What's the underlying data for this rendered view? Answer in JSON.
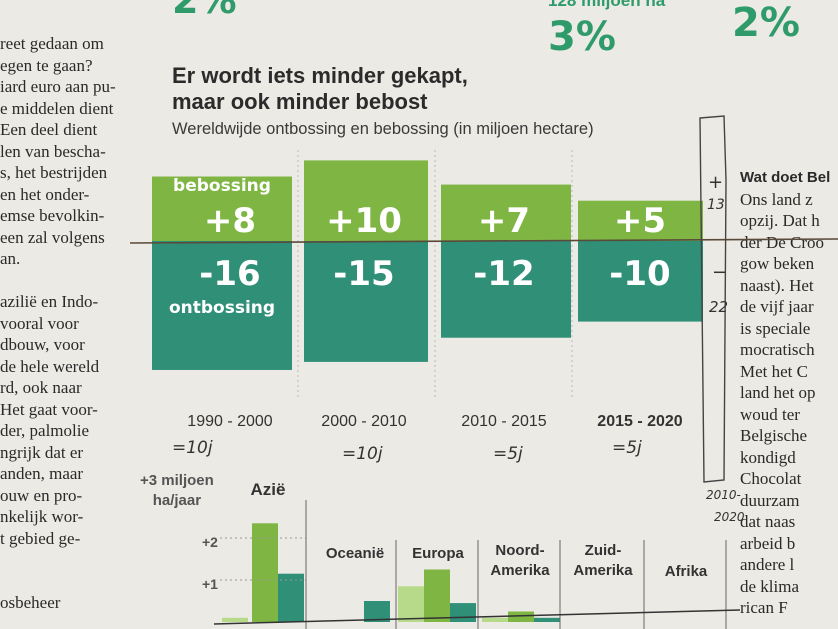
{
  "left_column": {
    "lines": [
      "reet gedaan om",
      "egen te gaan?",
      "iard euro aan pu-",
      "e middelen dient",
      "Een deel dient",
      "len van bescha-",
      "s, het bestrijden",
      "en het onder-",
      "emse bevolkin-",
      "een zal volgens",
      "an.",
      "",
      "aziliё en Indo-",
      "vooral voor",
      "dbouw, voor",
      "de hele wereld",
      "rd, ook naar",
      "Het gaat voor-",
      "der, palmolie",
      "ngrijk dat er",
      "anden, maar",
      "ouw en pro-",
      "nkelijk wor-",
      "t gebied ge-",
      "",
      "",
      "osbeheer"
    ]
  },
  "right_column": {
    "heading": "Wat doet Bel",
    "lines": [
      "Ons land z",
      "opzij. Dat h",
      "der De Croo",
      "gow beken",
      "naast). Het",
      "de vijf jaar",
      "is speciale",
      "mocratisch",
      "Met het C",
      "land het op",
      "woud ter",
      "Belgische",
      "kondigd",
      "Chocolat",
      "duurzam",
      "dat naas",
      "arbeid b",
      "andere l",
      "de klima",
      "rican F"
    ]
  },
  "top_stats": {
    "partial_left": "2%",
    "partial_mid_label": "128 miljoen ha",
    "mid_value": "3%",
    "right_value": "2%"
  },
  "chart_data": {
    "type": "bar",
    "title": "Er wordt iets minder gekapt,\nmaar ook minder bebost",
    "title_lines": [
      "Er wordt iets minder gekapt,",
      "maar ook minder bebost"
    ],
    "subtitle": "Wereldwijde ontbossing en bebossing (in miljoen hectare)",
    "categories": [
      "1990 - 2000",
      "2000 - 2010",
      "2010 - 2015",
      "2015 - 2020"
    ],
    "series": [
      {
        "name": "bebossing",
        "values": [
          8,
          10,
          7,
          5
        ],
        "labels": [
          "+8",
          "+10",
          "+7",
          "+5"
        ]
      },
      {
        "name": "ontbossing",
        "values": [
          -16,
          -15,
          -12,
          -10
        ],
        "labels": [
          "-16",
          "-15",
          "-12",
          "-10"
        ]
      }
    ],
    "ylim": [
      -16,
      10
    ],
    "colors": {
      "bebossing": "#7fb543",
      "ontbossing": "#2f8f77"
    },
    "highlight_category": "2015 - 2020"
  },
  "handwritten": {
    "under_periods": [
      "=10j",
      "=10j",
      "=5j",
      "=5j"
    ],
    "box_plus": "+",
    "box_plus_value": "13",
    "box_minus": "−",
    "box_minus_value": "22",
    "box_period_a": "2010-",
    "box_period_b": "2020"
  },
  "lower_chart": {
    "ylabel": "+3 miljoen\nha/jaar",
    "ylabel_lines": [
      "+3 miljoen",
      "ha/jaar"
    ],
    "ticks": [
      "+2",
      "+1"
    ],
    "regions": [
      {
        "name": "Aziё",
        "lines": [
          "Aziё"
        ]
      },
      {
        "name": "Oceaniё",
        "lines": [
          "Oceaniё"
        ]
      },
      {
        "name": "Europa",
        "lines": [
          "Europa"
        ]
      },
      {
        "name": "Noord-Amerika",
        "lines": [
          "Noord-",
          "Amerika"
        ]
      },
      {
        "name": "Zuid-Amerika",
        "lines": [
          "Zuid-",
          "Amerika"
        ]
      },
      {
        "name": "Afrika",
        "lines": [
          "Afrika"
        ]
      }
    ],
    "values": {
      "Aziё": [
        0.1,
        2.35,
        1.15
      ],
      "Oceaniё": [
        0,
        0,
        0.5
      ],
      "Europa": [
        0.85,
        1.25,
        0.45
      ],
      "Noord-Amerika": [
        0.1,
        0.25,
        0.1
      ]
    },
    "ymax": 3
  }
}
